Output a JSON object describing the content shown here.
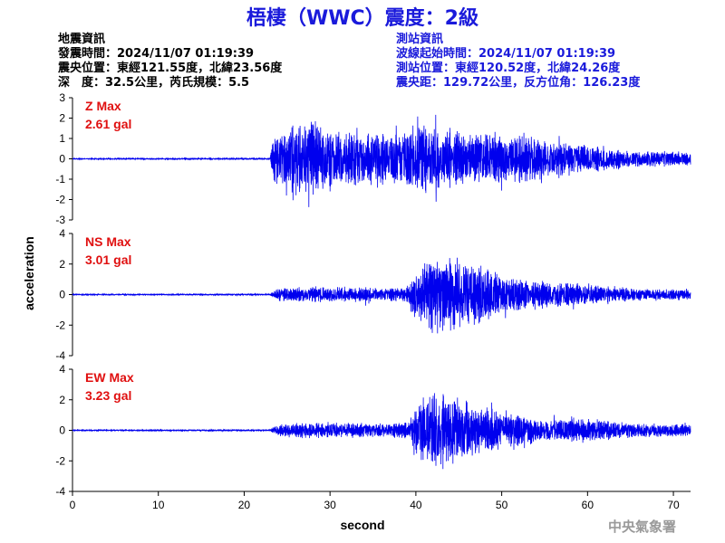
{
  "title": "梧棲（WWC）震度：2級",
  "quake_info": {
    "header": "地震資訊",
    "origin_time": "發震時間：2024/11/07 01:19:39",
    "epicenter": "震央位置：東經121.55度，北緯23.56度",
    "depth_magnitude": "深　度：32.5公里，芮氏規模：5.5"
  },
  "station_info": {
    "header": "測站資訊",
    "wave_start": "波線起始時間：2024/11/07 01:19:39",
    "location": "測站位置：東經120.52度，北緯24.26度",
    "distance": "震央距：129.72公里，反方位角：126.23度"
  },
  "agency": "中央氣象署",
  "chart_data": {
    "type": "line",
    "xlabel": "second",
    "ylabel": "acceleration",
    "xlim": [
      0,
      72
    ],
    "xticks": [
      "0",
      "10",
      "20",
      "30",
      "40",
      "50",
      "60",
      "70"
    ],
    "line_color": "#0000ee",
    "panels": [
      {
        "name": "Z",
        "max_label": "Z Max",
        "max_value": "2.61 gal",
        "ylim": [
          -3,
          3
        ],
        "yticks": [
          "3",
          "2",
          "1",
          "0",
          "-1",
          "-2",
          "-3"
        ],
        "envelope": [
          [
            0,
            0.03
          ],
          [
            23,
            0.05
          ],
          [
            23.5,
            1.5
          ],
          [
            27,
            2.5
          ],
          [
            31,
            1.6
          ],
          [
            35,
            1.5
          ],
          [
            42,
            2.0
          ],
          [
            45,
            1.6
          ],
          [
            50,
            1.5
          ],
          [
            55,
            1.1
          ],
          [
            60,
            0.8
          ],
          [
            65,
            0.5
          ],
          [
            72,
            0.4
          ]
        ]
      },
      {
        "name": "NS",
        "max_label": "NS Max",
        "max_value": "3.01 gal",
        "ylim": [
          -4,
          4
        ],
        "yticks": [
          "4",
          "2",
          "0",
          "-2",
          "-4"
        ],
        "envelope": [
          [
            0,
            0.04
          ],
          [
            23,
            0.06
          ],
          [
            24,
            0.5
          ],
          [
            30,
            0.6
          ],
          [
            35,
            0.5
          ],
          [
            39,
            0.6
          ],
          [
            40,
            2.0
          ],
          [
            42,
            3.0
          ],
          [
            46,
            2.6
          ],
          [
            50,
            1.5
          ],
          [
            55,
            1.0
          ],
          [
            60,
            0.8
          ],
          [
            65,
            0.5
          ],
          [
            72,
            0.4
          ]
        ]
      },
      {
        "name": "EW",
        "max_label": "EW Max",
        "max_value": "3.23 gal",
        "ylim": [
          -4,
          4
        ],
        "yticks": [
          "4",
          "2",
          "0",
          "-2",
          "-4"
        ],
        "envelope": [
          [
            0,
            0.04
          ],
          [
            23,
            0.06
          ],
          [
            24,
            0.5
          ],
          [
            30,
            0.6
          ],
          [
            35,
            0.55
          ],
          [
            39,
            0.6
          ],
          [
            40,
            2.0
          ],
          [
            42,
            3.2
          ],
          [
            46,
            2.2
          ],
          [
            50,
            1.4
          ],
          [
            55,
            0.9
          ],
          [
            60,
            0.9
          ],
          [
            65,
            0.6
          ],
          [
            72,
            0.45
          ]
        ]
      }
    ]
  }
}
